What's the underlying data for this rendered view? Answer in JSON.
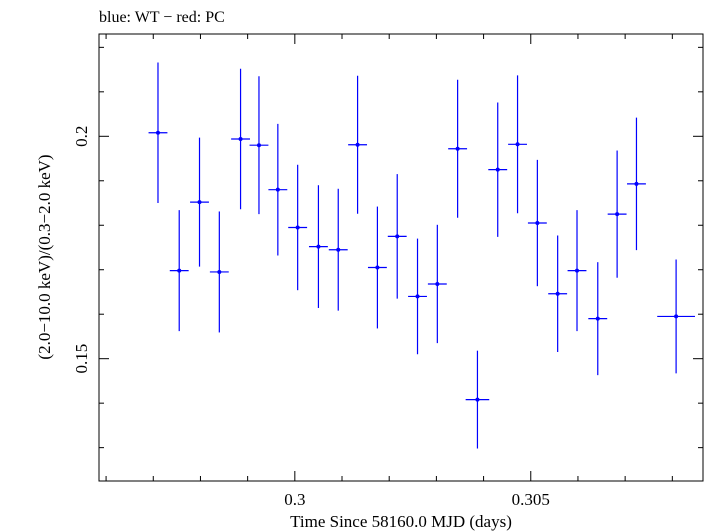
{
  "chart_data": {
    "type": "scatter",
    "title": "blue: WT − red: PC",
    "xlabel": "Time Since 58160.0 MJD (days)",
    "ylabel": "(2.0−10.0 keV)/(0.3−2.0 keV)",
    "xlim": [
      0.29585,
      0.30865
    ],
    "ylim": [
      0.1225,
      0.223
    ],
    "xticks": [
      0.3,
      0.305
    ],
    "xtick_labels": [
      "0.3",
      "0.305"
    ],
    "yticks": [
      0.15,
      0.2
    ],
    "ytick_labels": [
      "0.15",
      "0.2"
    ],
    "grid": false,
    "series": [
      {
        "color": "#0000ff",
        "points": [
          {
            "x": 0.2971,
            "xerr": 0.0002,
            "y": 0.2008,
            "yerr": 0.0158
          },
          {
            "x": 0.29755,
            "xerr": 0.0002,
            "y": 0.1698,
            "yerr": 0.0136
          },
          {
            "x": 0.29798,
            "xerr": 0.0002,
            "y": 0.1852,
            "yerr": 0.0145
          },
          {
            "x": 0.2984,
            "xerr": 0.0002,
            "y": 0.1695,
            "yerr": 0.0136
          },
          {
            "x": 0.29885,
            "xerr": 0.0002,
            "y": 0.1994,
            "yerr": 0.0158
          },
          {
            "x": 0.29924,
            "xerr": 0.0002,
            "y": 0.198,
            "yerr": 0.0155
          },
          {
            "x": 0.29964,
            "xerr": 0.0002,
            "y": 0.188,
            "yerr": 0.0148
          },
          {
            "x": 0.30006,
            "xerr": 0.0002,
            "y": 0.1795,
            "yerr": 0.0141
          },
          {
            "x": 0.3005,
            "xerr": 0.0002,
            "y": 0.1752,
            "yerr": 0.0138
          },
          {
            "x": 0.30092,
            "xerr": 0.0002,
            "y": 0.1745,
            "yerr": 0.0137
          },
          {
            "x": 0.30133,
            "xerr": 0.0002,
            "y": 0.1981,
            "yerr": 0.0155
          },
          {
            "x": 0.30175,
            "xerr": 0.0002,
            "y": 0.1705,
            "yerr": 0.0137
          },
          {
            "x": 0.30217,
            "xerr": 0.0002,
            "y": 0.1775,
            "yerr": 0.014
          },
          {
            "x": 0.3026,
            "xerr": 0.0002,
            "y": 0.164,
            "yerr": 0.013
          },
          {
            "x": 0.30302,
            "xerr": 0.0002,
            "y": 0.1668,
            "yerr": 0.0133
          },
          {
            "x": 0.30345,
            "xerr": 0.0002,
            "y": 0.1972,
            "yerr": 0.0155
          },
          {
            "x": 0.30387,
            "xerr": 0.00025,
            "y": 0.1408,
            "yerr": 0.011
          },
          {
            "x": 0.3043,
            "xerr": 0.0002,
            "y": 0.1925,
            "yerr": 0.0151
          },
          {
            "x": 0.30472,
            "xerr": 0.0002,
            "y": 0.1982,
            "yerr": 0.0155
          },
          {
            "x": 0.30514,
            "xerr": 0.0002,
            "y": 0.1805,
            "yerr": 0.0142
          },
          {
            "x": 0.30557,
            "xerr": 0.0002,
            "y": 0.1646,
            "yerr": 0.0131
          },
          {
            "x": 0.30598,
            "xerr": 0.0002,
            "y": 0.1698,
            "yerr": 0.0136
          },
          {
            "x": 0.30642,
            "xerr": 0.0002,
            "y": 0.159,
            "yerr": 0.0127
          },
          {
            "x": 0.30683,
            "xerr": 0.0002,
            "y": 0.1825,
            "yerr": 0.0143
          },
          {
            "x": 0.30724,
            "xerr": 0.0002,
            "y": 0.1893,
            "yerr": 0.0149
          },
          {
            "x": 0.30808,
            "xerr": 0.0004,
            "y": 0.1595,
            "yerr": 0.0128
          }
        ]
      }
    ]
  }
}
